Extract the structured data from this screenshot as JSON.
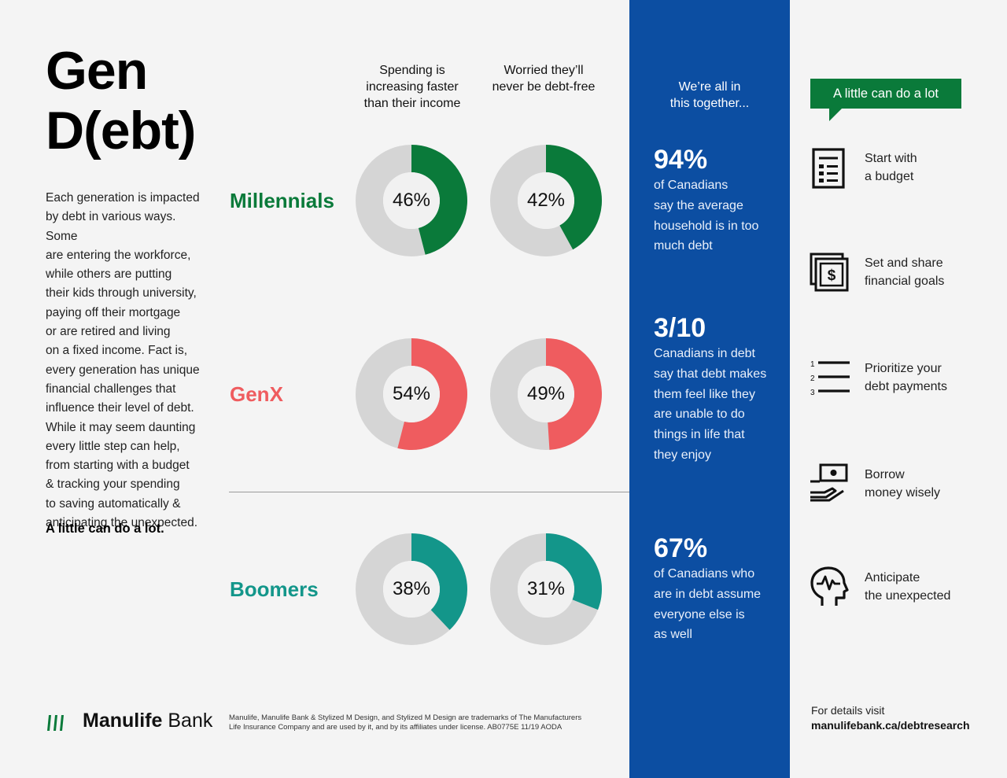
{
  "title": "Gen\nD(ebt)",
  "intro": "Each generation is impacted\nby debt in various ways. Some\nare entering the workforce,\nwhile others are putting\ntheir kids through university,\npaying off their mortgage\nor are retired and living\non a fixed income. Fact is,\nevery generation has unique\nfinancial challenges that\ninfluence their level of debt.\nWhile it may seem daunting\nevery little step can help,\nfrom starting with a budget\n& tracking your spending\nto saving automatically &\nanticipating the unexpected.",
  "tagline": "A little can do a lot.",
  "chart_data": {
    "type": "donut",
    "columns": [
      "Spending is\nincreasing faster\nthan their income",
      "Worried they’ll\nnever be debt-free"
    ],
    "series": [
      {
        "name": "Millennials",
        "color": "#0a7a3a",
        "values": [
          46,
          42
        ],
        "labels": [
          "46%",
          "42%"
        ]
      },
      {
        "name": "GenX",
        "color": "#ef5c5f",
        "values": [
          54,
          49
        ],
        "labels": [
          "54%",
          "49%"
        ]
      },
      {
        "name": "Boomers",
        "color": "#13968a",
        "values": [
          38,
          31
        ],
        "labels": [
          "38%",
          "31%"
        ]
      }
    ],
    "remainder_color": "#d5d5d5",
    "unit": "%"
  },
  "panel": {
    "heading": "We’re all in\nthis together...",
    "color": "#0c4ea2",
    "stats": [
      {
        "value": "94%",
        "text": "of Canadians\nsay the average\nhousehold is in too\nmuch debt"
      },
      {
        "value": "3/10",
        "text": "Canadians in debt\nsay that debt makes\nthem feel like they\nare unable to do\nthings in life that\nthey enjoy"
      },
      {
        "value": "67%",
        "text": "of Canadians who\nare in debt assume\neveryone else is\nas well"
      }
    ]
  },
  "tips": {
    "heading": "A little can do a lot",
    "items": [
      {
        "icon": "budget-icon",
        "text": "Start with\na budget"
      },
      {
        "icon": "money-goals-icon",
        "text": "Set and share\nfinancial goals"
      },
      {
        "icon": "numbered-list-icon",
        "text": "Prioritize your\ndebt payments",
        "list_numbers": [
          "1",
          "2",
          "3"
        ]
      },
      {
        "icon": "borrow-money-icon",
        "text": "Borrow\nmoney wisely"
      },
      {
        "icon": "head-mind-icon",
        "text": "Anticipate\nthe unexpected"
      }
    ],
    "money_symbol": "$"
  },
  "footer": {
    "brand": "Manulife",
    "brand_suffix": "Bank",
    "brand_color": "#0a7a3a",
    "legal": "Manulife, Manulife Bank & Stylized M Design, and Stylized M Design are trademarks of The Manufacturers\nLife Insurance Company and are used by it, and by its affiliates under license.   AB0775E   11/19   AODA",
    "details_label": "For details visit",
    "details_url": "manulifebank.ca/debtresearch"
  }
}
